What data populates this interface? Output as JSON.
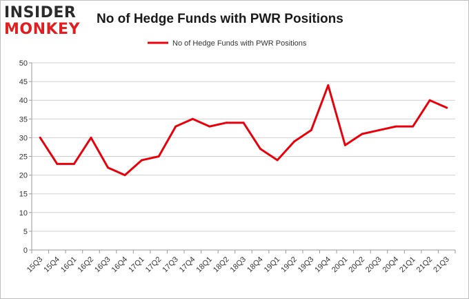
{
  "brand": {
    "logo_top": "INSIDER",
    "logo_bottom": "MONKEY"
  },
  "chart_data": {
    "type": "line",
    "title": "No of Hedge Funds with PWR Positions",
    "xlabel": "",
    "ylabel": "",
    "categories": [
      "15Q3",
      "15Q4",
      "16Q1",
      "16Q2",
      "16Q3",
      "16Q4",
      "17Q1",
      "17Q2",
      "17Q3",
      "17Q4",
      "18Q1",
      "18Q2",
      "18Q3",
      "18Q4",
      "19Q1",
      "19Q2",
      "19Q3",
      "19Q4",
      "20Q1",
      "20Q2",
      "20Q3",
      "20Q4",
      "21Q1",
      "21Q2",
      "21Q3"
    ],
    "series": [
      {
        "name": "No of Hedge Funds with PWR Positions",
        "color": "#e8000b",
        "values": [
          30,
          23,
          23,
          30,
          22,
          20,
          24,
          25,
          33,
          35,
          33,
          34,
          34,
          27,
          24,
          29,
          32,
          44,
          28,
          31,
          32,
          33,
          33,
          40,
          38
        ]
      }
    ],
    "ylim": [
      0,
      50
    ],
    "yticks": [
      0,
      5,
      10,
      15,
      20,
      25,
      30,
      35,
      40,
      45,
      50
    ],
    "grid": true,
    "legend_position": "top-center"
  }
}
